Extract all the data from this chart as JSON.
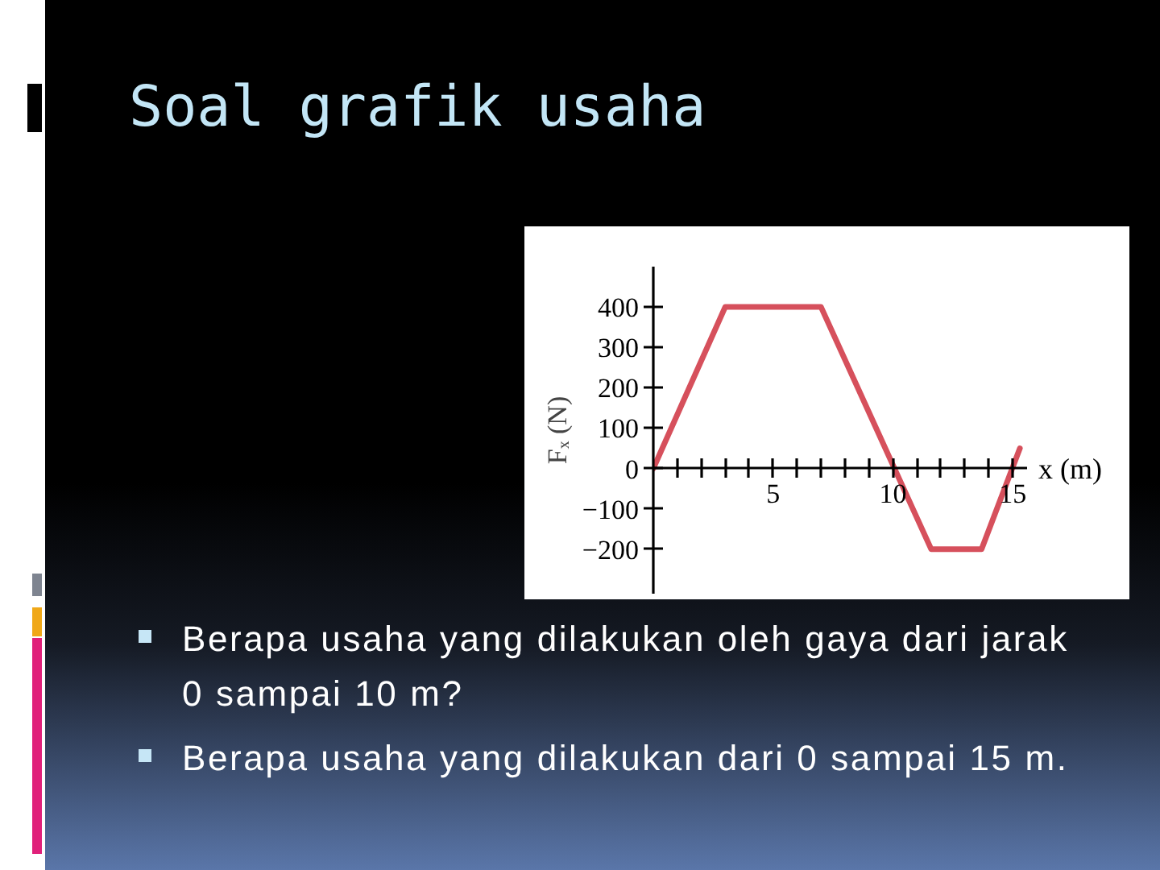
{
  "chart_data": {
    "type": "line",
    "title": "Soal grafik usaha",
    "xlabel": "x (m)",
    "ylabel": "Fₓ (N)",
    "x": [
      0,
      3,
      7,
      11.6,
      13.7,
      15.3
    ],
    "values": [
      0,
      400,
      400,
      -200,
      -200,
      50
    ],
    "color": "#d6505c",
    "xlim": [
      0,
      15.6
    ],
    "ylim": [
      -310,
      500
    ],
    "xticks": [
      {
        "value": 1,
        "label": null
      },
      {
        "value": 2,
        "label": null
      },
      {
        "value": 3,
        "label": null
      },
      {
        "value": 4,
        "label": null
      },
      5,
      {
        "value": 6,
        "label": null
      },
      {
        "value": 7,
        "label": null
      },
      {
        "value": 8,
        "label": null
      },
      {
        "value": 9,
        "label": null
      },
      10,
      {
        "value": 11,
        "label": null
      },
      {
        "value": 12,
        "label": null
      },
      {
        "value": 13,
        "label": null
      },
      {
        "value": 14,
        "label": null
      },
      15
    ],
    "yticks": [
      400,
      300,
      200,
      100,
      0,
      {
        "value": -100,
        "label": "−100"
      },
      {
        "value": -200,
        "label": "−200"
      }
    ],
    "grid": false,
    "annotations": [
      "Berapa usaha yang dilakukan oleh gaya dari jarak 0 sampai 10 m?",
      "Berapa usaha yang dilakukan dari 0 sampai 15 m."
    ]
  }
}
